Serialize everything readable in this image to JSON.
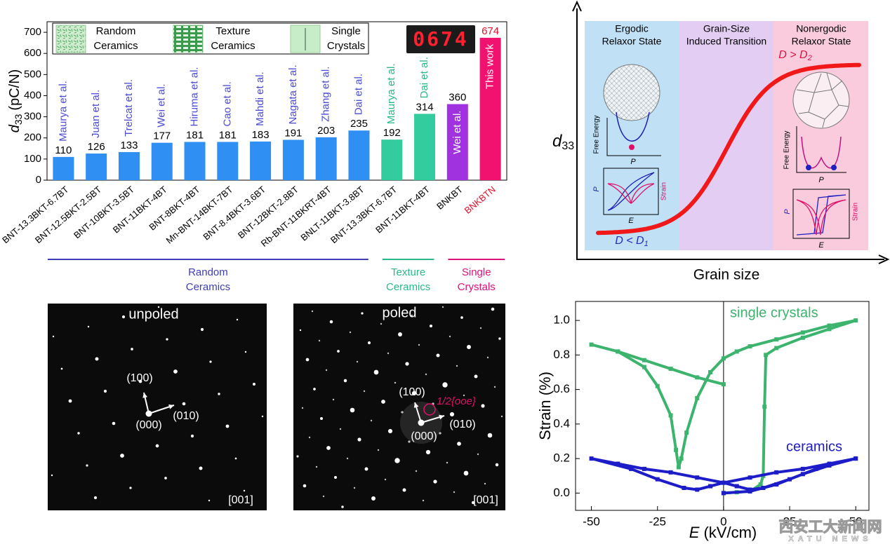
{
  "chart_data": [
    {
      "type": "bar",
      "y_label": {
        "symbol": "d",
        "subscript": "33",
        "unit": "(pC/N)"
      },
      "ylim": [
        0,
        750
      ],
      "yticks": [
        0,
        100,
        200,
        300,
        400,
        500,
        600,
        700
      ],
      "counter": "0674",
      "legend": "top-left",
      "groups": [
        {
          "name": [
            "Random",
            "Ceramics"
          ],
          "color": "#3d3db8",
          "annotation_color": "#4b4bd6",
          "categories": [
            "BNT-13.3BKT-6.7BT",
            "BNT-12.5BKT-2.5BT",
            "BNT-10BKT-3.5BT",
            "BNT-11BKT-4BT",
            "BNT-8BKT-4BT",
            "Mn-BNT-14BKT-7BT",
            "BNT-8.4BKT-3.6BT",
            "BNT-12BKT-2.8BT",
            "Rb-BNT-11BKRT-4BT",
            "BNLT-11BKT-3.8BT"
          ],
          "values": [
            110,
            126,
            133,
            177,
            181,
            181,
            183,
            191,
            203,
            235
          ],
          "annotations": [
            "Maurya et al.",
            "Juan et al.",
            "Trelcat et al.",
            "Wei et al.",
            "Hiruma et al.",
            "Cao et al.",
            "Mahdi et al.",
            "Nagata et al.",
            "Zhang et al.",
            "Dai et al."
          ],
          "colors": [
            "#2f8ff2",
            "#2f8ff2",
            "#2f8ff2",
            "#2f8ff2",
            "#2f8ff2",
            "#2f8ff2",
            "#2f8ff2",
            "#2f8ff2",
            "#2f8ff2",
            "#2f8ff2"
          ],
          "label_colors": [
            "#000000",
            "#000000",
            "#000000",
            "#000000",
            "#000000",
            "#000000",
            "#000000",
            "#000000",
            "#000000",
            "#000000"
          ]
        },
        {
          "name": [
            "Texture",
            "Ceramics"
          ],
          "color": "#2ab88a",
          "annotation_color": "#2ab88a",
          "categories": [
            "BNT-13.3BKT-6.7BT",
            "BNT-11BKT-4BT"
          ],
          "values": [
            192,
            314
          ],
          "annotations": [
            "Maurya et al.",
            "Dai et al."
          ],
          "colors": [
            "#33cc9e",
            "#33cc9e"
          ],
          "label_colors": [
            "#000000",
            "#000000"
          ]
        },
        {
          "name": [
            "Single",
            "Crystals"
          ],
          "color": "#e0107a",
          "annotation_color": "#ffffff",
          "categories": [
            "BNKBT",
            "BNKBTN"
          ],
          "values": [
            360,
            674
          ],
          "annotations": [
            "Wei et al.",
            "This work"
          ],
          "colors": [
            "#a032e0",
            "#f0126e"
          ],
          "label_colors": [
            "#000000",
            "#e8102a"
          ]
        }
      ]
    },
    {
      "type": "line",
      "x_label": {
        "symbol": "E",
        "unit": "(kV/cm)"
      },
      "y_label": "Strain (%)",
      "xlim": [
        -56,
        55
      ],
      "xticks": [
        -50,
        -25,
        0,
        25,
        50
      ],
      "ylim": [
        -0.1,
        1.11
      ],
      "yticks": [
        {
          "value": 0,
          "label": "0.0"
        },
        0.2,
        0.4,
        0.6,
        0.8,
        {
          "value": 1,
          "label": "1.0"
        }
      ],
      "zero_line": true,
      "series": [
        {
          "name": "single crystals",
          "color": "#3cb46e",
          "x": [
            0,
            5,
            10,
            14,
            15,
            15.5,
            16,
            20,
            30,
            40,
            50,
            40,
            30,
            20,
            10,
            5,
            0,
            -5,
            -10,
            -14,
            -16,
            -17,
            -18,
            -20,
            -25,
            -30,
            -40,
            -50,
            -40,
            -30,
            -20,
            -10,
            0
          ],
          "values": [
            0,
            0.005,
            0.01,
            0.05,
            0.1,
            0.5,
            0.8,
            0.84,
            0.9,
            0.95,
            1.0,
            0.97,
            0.93,
            0.89,
            0.85,
            0.82,
            0.78,
            0.7,
            0.55,
            0.35,
            0.2,
            0.15,
            0.25,
            0.45,
            0.62,
            0.73,
            0.82,
            0.86,
            0.82,
            0.77,
            0.72,
            0.67,
            0.63
          ]
        },
        {
          "name": "ceramics",
          "color": "#1c1cc8",
          "x": [
            0,
            10,
            20,
            30,
            40,
            50,
            40,
            30,
            20,
            10,
            0,
            -5,
            -10,
            -15,
            -25,
            -35,
            -50,
            -40,
            -30,
            -20,
            -10,
            0,
            5,
            10,
            15,
            25,
            35,
            50
          ],
          "values": [
            0,
            0.01,
            0.05,
            0.11,
            0.16,
            0.2,
            0.17,
            0.14,
            0.12,
            0.09,
            0.06,
            0.04,
            0.02,
            0.03,
            0.08,
            0.14,
            0.2,
            0.17,
            0.14,
            0.12,
            0.09,
            0.06,
            0.04,
            0.02,
            0.03,
            0.08,
            0.14,
            0.2
          ]
        }
      ]
    }
  ],
  "schematic": {
    "y_label": {
      "symbol": "d",
      "subscript": "33"
    },
    "x_label": "Grain size",
    "regions": [
      {
        "title": [
          "Ergodic",
          "Relaxor State"
        ]
      },
      {
        "title": [
          "Grain-Size",
          "Induced Transition"
        ]
      },
      {
        "title": [
          "Nonergodic",
          "Relaxor State"
        ]
      }
    ],
    "left_condition": {
      "text": "D < D",
      "subscript": "1"
    },
    "right_condition": {
      "text": "D > D",
      "subscript": "2"
    },
    "insets": {
      "energy_axis": "Free Energy",
      "polarization": "P",
      "field": "E",
      "strain": "Strain"
    }
  },
  "diffraction": [
    {
      "title": "unpoled",
      "spots": [
        "(100)",
        "(000)",
        "(010)"
      ],
      "zone": "[001]"
    },
    {
      "title": "poled",
      "spots": [
        "(100)",
        "(000)",
        "(010)"
      ],
      "superlattice": "1/2{ooe}",
      "zone": "[001]"
    }
  ],
  "watermark": [
    "西安工大新闻网",
    "XATU NEWS"
  ]
}
